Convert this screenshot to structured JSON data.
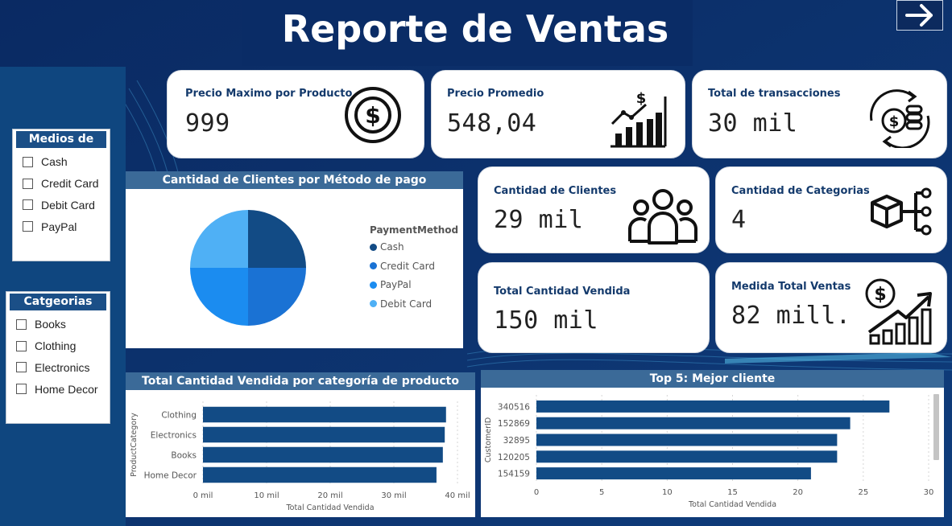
{
  "header": {
    "title": "Reporte de Ventas",
    "nav_icon": "arrow-right-icon"
  },
  "slicers": {
    "payment": {
      "title": "Medios de Pago",
      "items": [
        "Cash",
        "Credit Card",
        "Debit Card",
        "PayPal"
      ]
    },
    "categories": {
      "title": "Catgeorias",
      "items": [
        "Books",
        "Clothing",
        "Electronics",
        "Home Decor"
      ]
    }
  },
  "kpis": {
    "max_price": {
      "label": "Precio Maximo por Producto",
      "value": "999",
      "icon": "dollar-circle-icon"
    },
    "avg_price": {
      "label": "Precio Promedio",
      "value": "548,04",
      "icon": "bar-growth-icon"
    },
    "transactions": {
      "label": "Total de transacciones",
      "value": "30 mil",
      "icon": "coins-cycle-icon"
    },
    "customers": {
      "label": "Cantidad de Clientes",
      "value": "29 mil",
      "icon": "users-group-icon"
    },
    "categories": {
      "label": "Cantidad de Categorias",
      "value": "4",
      "icon": "cube-network-icon"
    },
    "qty_sold": {
      "label": "Total Cantidad Vendida",
      "value": "150 mil"
    },
    "total_sales": {
      "label": "Medida Total Ventas",
      "value": "82 mill.",
      "icon": "sales-growth-icon"
    }
  },
  "colors": {
    "dark_blue": "#0c3068",
    "bar": "#124b85",
    "panel_title": "#3b6a98"
  },
  "pie_chart": {
    "title": "Cantidad de Clientes por Método de pago"
  },
  "bar_chart_categories": {
    "title": "Total Cantidad Vendida por categoría de producto"
  },
  "bar_chart_customers": {
    "title": "Top 5: Mejor cliente"
  },
  "chart_data": [
    {
      "type": "pie",
      "title": "Cantidad de Clientes por Método de pago",
      "legend_title": "PaymentMethod",
      "legend_position": "right",
      "categories": [
        "Cash",
        "Credit Card",
        "PayPal",
        "Debit Card"
      ],
      "values": [
        25,
        25,
        25,
        25
      ],
      "colors": [
        "#124b85",
        "#1a72d4",
        "#1b8cf0",
        "#4fb0f5"
      ]
    },
    {
      "type": "bar",
      "orientation": "horizontal",
      "title": "Total Cantidad Vendida por categoría de producto",
      "xlabel": "Total Cantidad Vendida",
      "ylabel": "ProductCategory",
      "categories": [
        "Clothing",
        "Electronics",
        "Books",
        "Home Decor"
      ],
      "values": [
        38200,
        38000,
        37700,
        36700
      ],
      "xlim": [
        0,
        40000
      ],
      "xticks": [
        0,
        10000,
        20000,
        30000,
        40000
      ],
      "xtick_labels": [
        "0 mil",
        "10 mil",
        "20 mil",
        "30 mil",
        "40 mil"
      ],
      "grid": true,
      "color": "#124b85"
    },
    {
      "type": "bar",
      "orientation": "horizontal",
      "title": "Top 5: Mejor cliente",
      "xlabel": "Total Cantidad Vendida",
      "ylabel": "CustomerID",
      "categories": [
        "340516",
        "152869",
        "32895",
        "120205",
        "154159"
      ],
      "values": [
        27,
        24,
        23,
        23,
        21
      ],
      "xlim": [
        0,
        30
      ],
      "xticks": [
        0,
        5,
        10,
        15,
        20,
        25,
        30
      ],
      "xtick_labels": [
        "0",
        "5",
        "10",
        "15",
        "20",
        "25",
        "30"
      ],
      "grid": true,
      "color": "#124b85"
    }
  ]
}
